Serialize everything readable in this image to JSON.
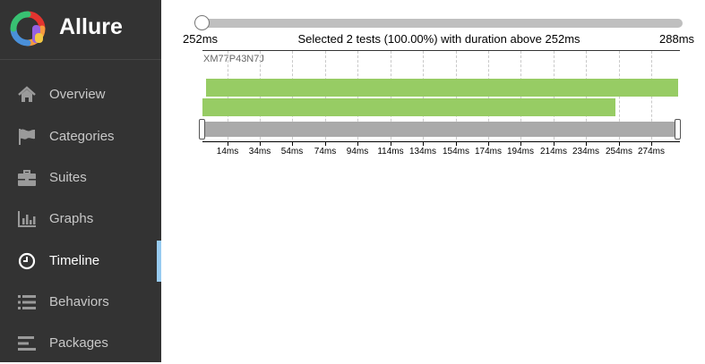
{
  "brand": {
    "title": "Allure"
  },
  "sidebar": {
    "items": [
      {
        "label": "Overview",
        "icon": "home-icon",
        "active": false
      },
      {
        "label": "Categories",
        "icon": "flag-icon",
        "active": false
      },
      {
        "label": "Suites",
        "icon": "briefcase-icon",
        "active": false
      },
      {
        "label": "Graphs",
        "icon": "bar-chart-icon",
        "active": false
      },
      {
        "label": "Timeline",
        "icon": "clock-icon",
        "active": true
      },
      {
        "label": "Behaviors",
        "icon": "list-icon",
        "active": false
      },
      {
        "label": "Packages",
        "icon": "align-left-icon",
        "active": false
      }
    ]
  },
  "timeline": {
    "range_min": "252ms",
    "range_max": "288ms",
    "selection_summary": "Selected 2 tests (100.00%) with duration above 252ms",
    "host": "XM77P43N7J",
    "axis_ticks": [
      "14ms",
      "34ms",
      "54ms",
      "74ms",
      "94ms",
      "114ms",
      "134ms",
      "154ms",
      "174ms",
      "194ms",
      "214ms",
      "234ms",
      "254ms",
      "274ms"
    ],
    "colors": {
      "passed": "#97cc64",
      "brush": "#aaaaaa",
      "active_accent": "#97cbf0"
    }
  }
}
